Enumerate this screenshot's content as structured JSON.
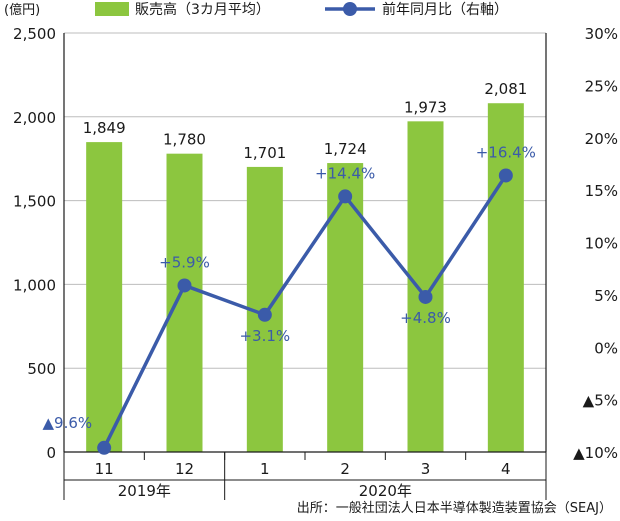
{
  "chart_data": {
    "type": "bar",
    "left_axis_unit": "(億円)",
    "legend": {
      "bar_label": "販売高（3カ月平均）",
      "line_label": "前年同月比（右軸）"
    },
    "categories": [
      "11",
      "12",
      "1",
      "2",
      "3",
      "4"
    ],
    "year_groups": [
      {
        "label": "2019年",
        "categories": [
          "11",
          "12"
        ]
      },
      {
        "label": "2020年",
        "categories": [
          "1",
          "2",
          "3",
          "4"
        ]
      }
    ],
    "series": [
      {
        "name": "販売高（3カ月平均）",
        "type": "bar",
        "axis": "left",
        "values": [
          1849,
          1780,
          1701,
          1724,
          1973,
          2081
        ],
        "labels": [
          "1,849",
          "1,780",
          "1,701",
          "1,724",
          "1,973",
          "2,081"
        ]
      },
      {
        "name": "前年同月比（右軸）",
        "type": "line",
        "axis": "right",
        "values": [
          -9.6,
          5.9,
          3.1,
          14.4,
          4.8,
          16.4
        ],
        "labels": [
          "▲9.6%",
          "+5.9%",
          "+3.1%",
          "+14.4%",
          "+4.8%",
          "+16.4%"
        ]
      }
    ],
    "left_axis": {
      "ylim": [
        0,
        2500
      ],
      "ticks": [
        0,
        500,
        1000,
        1500,
        2000,
        2500
      ],
      "tick_labels": [
        "0",
        "500",
        "1,000",
        "1,500",
        "2,000",
        "2,500"
      ]
    },
    "right_axis": {
      "ylim": [
        -10,
        30
      ],
      "ticks": [
        -10,
        -5,
        0,
        5,
        10,
        15,
        20,
        25,
        30
      ],
      "tick_labels": [
        "▲10%",
        "▲5%",
        "0%",
        "5%",
        "10%",
        "15%",
        "20%",
        "25%",
        "30%"
      ]
    },
    "grid": true,
    "legend_position": "top",
    "colors": {
      "bar": "#8cc63f",
      "line": "#3b5ba9",
      "line_label": "#3b5ba9",
      "grid": "#bdbdbd",
      "axis": "#1a1a1a"
    }
  },
  "source_note": "出所：一般社団法人日本半導体製造装置協会（SEAJ）"
}
